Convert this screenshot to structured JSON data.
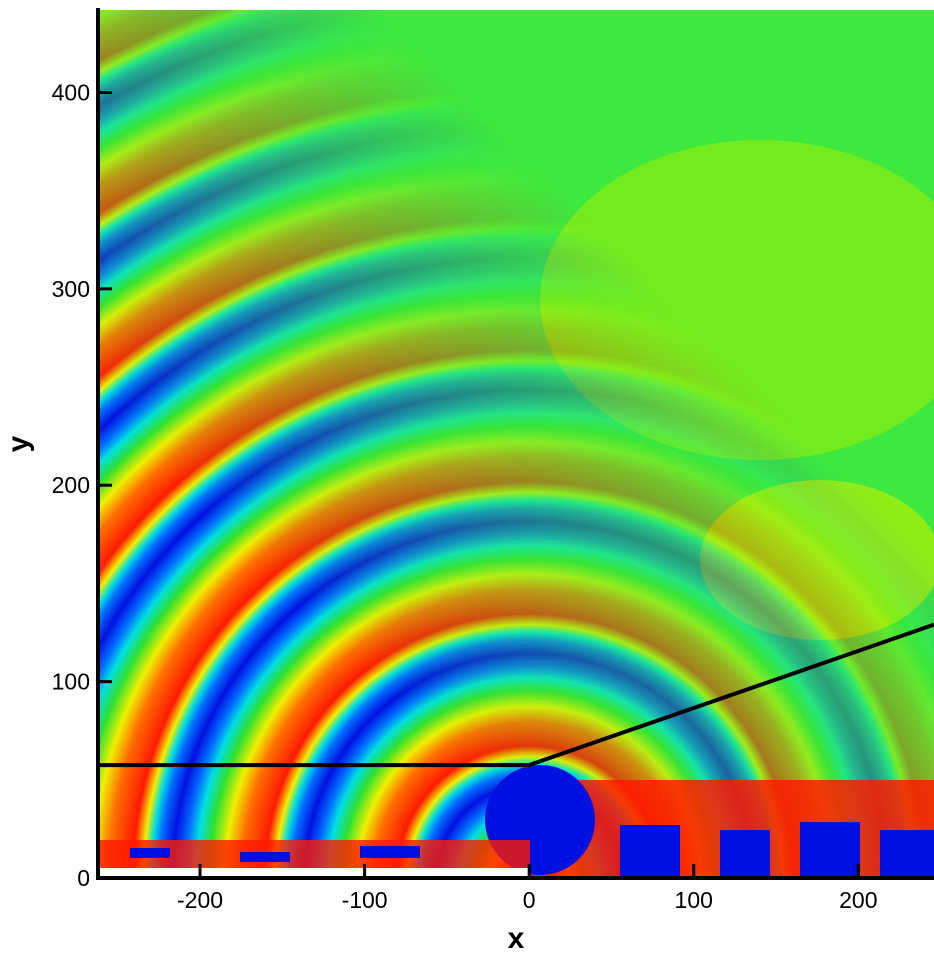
{
  "chart_data": {
    "type": "contour",
    "xlabel": "x",
    "ylabel": "y",
    "xlim": [
      -262,
      246
    ],
    "ylim": [
      0,
      442
    ],
    "xticks": [
      -200,
      -100,
      0,
      100,
      200
    ],
    "yticks": [
      0,
      100,
      200,
      300,
      400
    ],
    "series": [
      {
        "color": "#000000",
        "x": [
          -262,
          0,
          246
        ],
        "values": [
          57.5,
          57.5,
          129
        ]
      }
    ]
  }
}
